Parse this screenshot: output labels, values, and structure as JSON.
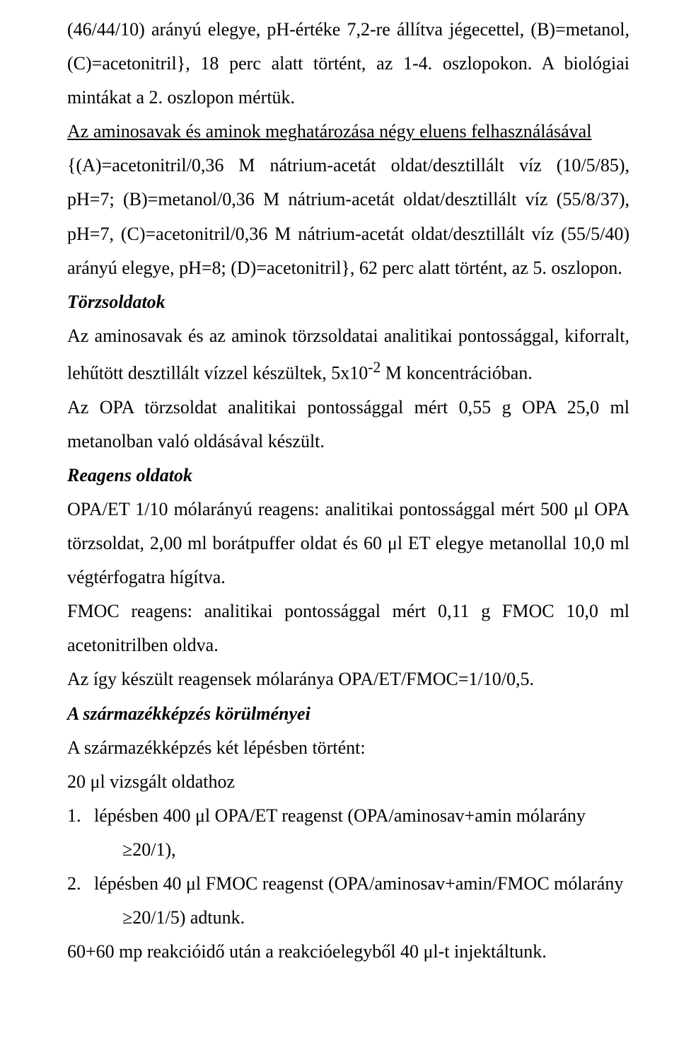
{
  "p1": "(46/44/10) arányú elegye, pH-értéke 7,2-re állítva jégecettel, (B)=metanol, (C)=acetonitril}, 18 perc alatt történt, az 1-4. oszlopokon. A biológiai mintákat a 2. oszlopon mértük.",
  "p2_underline": "Az aminosavak és aminok meghatározása négy eluens felhasználásával",
  "p3": "{(A)=acetonitril/0,36 M nátrium-acetát oldat/desztillált víz (10/5/85), pH=7; (B)=metanol/0,36 M nátrium-acetát oldat/desztillált víz (55/8/37), pH=7, (C)=acetonitril/0,36 M nátrium-acetát oldat/desztillált víz (55/5/40) arányú elegye, pH=8; (D)=acetonitril}, 62 perc alatt történt, az 5. oszlopon.",
  "h_torzs": "Törzsoldatok",
  "p4a": "Az aminosavak és az aminok törzsoldatai analitikai pontossággal, kiforralt, lehűtött desztillált vízzel készültek, 5x10",
  "p4_sup": "-2",
  "p4b": " M koncentrációban.",
  "p5": "Az OPA törzsoldat analitikai pontossággal mért 0,55 g OPA 25,0 ml metanolban való oldásával készült.",
  "h_reagens": "Reagens oldatok",
  "p6": "OPA/ET 1/10 mólarányú reagens: analitikai pontossággal mért 500 μl OPA törzsoldat, 2,00 ml borátpuffer oldat és 60 μl ET elegye metanollal 10,0 ml végtérfogatra hígítva.",
  "p7": "FMOC reagens: analitikai pontossággal mért 0,11 g FMOC 10,0 ml acetonitrilben oldva.",
  "p8": "Az így készült reagensek mólaránya OPA/ET/FMOC=1/10/0,5.",
  "h_szarm": "A származékképzés körülményei",
  "p9": "A származékképzés két lépésben történt:",
  "p10": "20 μl vizsgált oldathoz",
  "li1_num": "1.",
  "li1": "lépésben 400 μl OPA/ET reagenst (OPA/aminosav+amin mólarány",
  "li1_cont": "≥20/1),",
  "li2_num": "2.",
  "li2": "lépésben 40 μl FMOC reagenst (OPA/aminosav+amin/FMOC mólarány",
  "li2_cont": "≥20/1/5) adtunk.",
  "p11": "60+60 mp reakcióidő után a reakcióelegyből 40 μl-t injektáltunk."
}
